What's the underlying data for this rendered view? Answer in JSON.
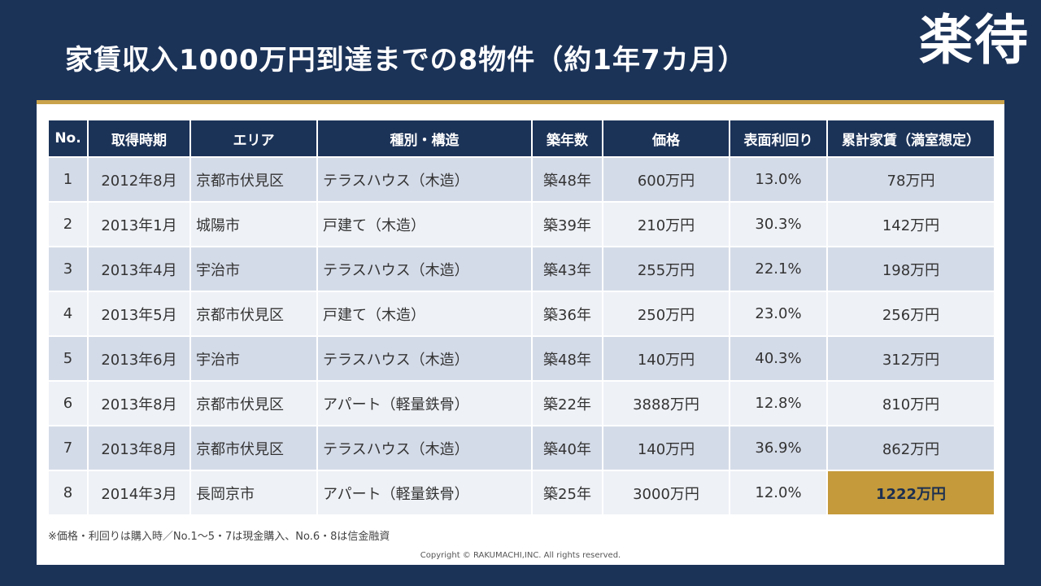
{
  "title": "家賃収入1000万円到達までの8物件（約1年7カ月）",
  "logo": "楽待",
  "table": {
    "headers": [
      "No.",
      "取得時期",
      "エリア",
      "種別・構造",
      "築年数",
      "価格",
      "表面利回り",
      "累計家賃（満室想定）"
    ],
    "rows": [
      [
        "1",
        "2012年8月",
        "京都市伏見区",
        "テラスハウス（木造）",
        "築48年",
        "600万円",
        "13.0%",
        "78万円"
      ],
      [
        "2",
        "2013年1月",
        "城陽市",
        "戸建て（木造）",
        "築39年",
        "210万円",
        "30.3%",
        "142万円"
      ],
      [
        "3",
        "2013年4月",
        "宇治市",
        "テラスハウス（木造）",
        "築43年",
        "255万円",
        "22.1%",
        "198万円"
      ],
      [
        "4",
        "2013年5月",
        "京都市伏見区",
        "戸建て（木造）",
        "築36年",
        "250万円",
        "23.0%",
        "256万円"
      ],
      [
        "5",
        "2013年6月",
        "宇治市",
        "テラスハウス（木造）",
        "築48年",
        "140万円",
        "40.3%",
        "312万円"
      ],
      [
        "6",
        "2013年8月",
        "京都市伏見区",
        "アパート（軽量鉄骨）",
        "築22年",
        "3888万円",
        "12.8%",
        "810万円"
      ],
      [
        "7",
        "2013年8月",
        "京都市伏見区",
        "テラスハウス（木造）",
        "築40年",
        "140万円",
        "36.9%",
        "862万円"
      ],
      [
        "8",
        "2014年3月",
        "長岡京市",
        "アパート（軽量鉄骨）",
        "築25年",
        "3000万円",
        "12.0%",
        "1222万円"
      ]
    ]
  },
  "note": "※価格・利回りは購入時／No.1〜5・7は現金購入、No.6・8は信金融資",
  "copyright": "Copyright © RAKUMACHI,INC. All rights reserved.",
  "colors": {
    "background": "#1c3358",
    "header": "#1c3358",
    "accent_gold": "#c49a3a",
    "row_odd": "#d4dbe8",
    "row_even": "#eef1f6"
  }
}
